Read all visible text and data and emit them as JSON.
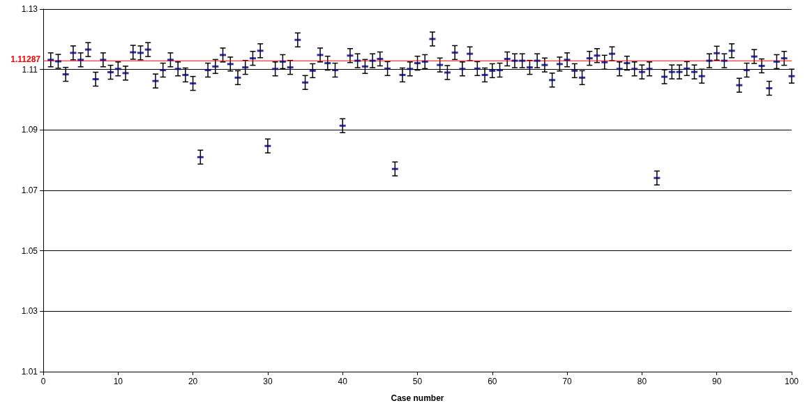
{
  "chart_data": {
    "type": "scatter",
    "xlabel": "Case number",
    "x": [
      1,
      2,
      3,
      4,
      5,
      6,
      7,
      8,
      9,
      10,
      11,
      12,
      13,
      14,
      15,
      16,
      17,
      18,
      19,
      20,
      21,
      22,
      23,
      24,
      25,
      26,
      27,
      28,
      29,
      30,
      31,
      32,
      33,
      34,
      35,
      36,
      37,
      38,
      39,
      40,
      41,
      42,
      43,
      44,
      45,
      46,
      47,
      48,
      49,
      50,
      51,
      52,
      53,
      54,
      55,
      56,
      57,
      58,
      59,
      60,
      61,
      62,
      63,
      64,
      65,
      66,
      67,
      68,
      69,
      70,
      71,
      72,
      73,
      74,
      75,
      76,
      77,
      78,
      79,
      80,
      81,
      82,
      83,
      84,
      85,
      86,
      87,
      88,
      89,
      90,
      91,
      92,
      93,
      94,
      95,
      96,
      97,
      98,
      99,
      100
    ],
    "series": [
      {
        "color": "#000080",
        "values": [
          1.1132,
          1.1127,
          1.1084,
          1.1155,
          1.1132,
          1.1166,
          1.1068,
          1.1132,
          1.1091,
          1.1102,
          1.1088,
          1.1157,
          1.1155,
          1.1166,
          1.1062,
          1.1098,
          1.1132,
          1.1102,
          1.1082,
          1.1054,
          1.081,
          1.1098,
          1.111,
          1.1148,
          1.1118,
          1.1073,
          1.1107,
          1.1137,
          1.1162,
          1.0847,
          1.1102,
          1.1126,
          1.1107,
          1.1198,
          1.1057,
          1.1096,
          1.1148,
          1.1121,
          1.1098,
          1.0914,
          1.1146,
          1.1129,
          1.111,
          1.1129,
          1.1135,
          1.1103,
          1.0771,
          1.1082,
          1.1102,
          1.1121,
          1.1126,
          1.1201,
          1.1115,
          1.109,
          1.1156,
          1.1102,
          1.1152,
          1.1103,
          1.1082,
          1.1096,
          1.1098,
          1.1135,
          1.1129,
          1.1129,
          1.1107,
          1.1129,
          1.1115,
          1.1065,
          1.1118,
          1.1132,
          1.1096,
          1.1073,
          1.1137,
          1.1146,
          1.1124,
          1.1152,
          1.1102,
          1.1121,
          1.1102,
          1.1092,
          1.1102,
          1.0741,
          1.1076,
          1.1092,
          1.1092,
          1.1103,
          1.1092,
          1.1078,
          1.1129,
          1.1154,
          1.1129,
          1.1162,
          1.1048,
          1.1098,
          1.1143,
          1.1112,
          1.1038,
          1.1126,
          1.1137,
          1.1078
        ],
        "errors": [
          0.0023,
          0.0023,
          0.0023,
          0.0023,
          0.0023,
          0.0023,
          0.0023,
          0.0023,
          0.0023,
          0.0023,
          0.0023,
          0.0023,
          0.0023,
          0.0023,
          0.0023,
          0.0023,
          0.0023,
          0.0023,
          0.0023,
          0.0023,
          0.0023,
          0.0023,
          0.0023,
          0.0023,
          0.0023,
          0.0023,
          0.0023,
          0.0023,
          0.0023,
          0.0023,
          0.0023,
          0.0023,
          0.0023,
          0.0023,
          0.0023,
          0.0023,
          0.0023,
          0.0023,
          0.0023,
          0.0023,
          0.0023,
          0.0023,
          0.0023,
          0.0023,
          0.0023,
          0.0023,
          0.0023,
          0.0023,
          0.0023,
          0.0023,
          0.0023,
          0.0023,
          0.0023,
          0.0023,
          0.0023,
          0.0023,
          0.0023,
          0.0023,
          0.0023,
          0.0023,
          0.0023,
          0.0023,
          0.0023,
          0.0023,
          0.0023,
          0.0023,
          0.0023,
          0.0023,
          0.0023,
          0.0023,
          0.0023,
          0.0023,
          0.0023,
          0.0023,
          0.0023,
          0.0023,
          0.0023,
          0.0023,
          0.0023,
          0.0023,
          0.0023,
          0.0023,
          0.0023,
          0.0023,
          0.0023,
          0.0023,
          0.0023,
          0.0023,
          0.0023,
          0.0023,
          0.0023,
          0.0023,
          0.0023,
          0.0023,
          0.0023,
          0.0023,
          0.0023,
          0.0023,
          0.0023,
          0.0023
        ]
      }
    ],
    "xlim": [
      0,
      100
    ],
    "xticks": [
      0,
      10,
      20,
      30,
      40,
      50,
      60,
      70,
      80,
      90,
      100
    ],
    "ylim": [
      1.01,
      1.13
    ],
    "yticks": [
      1.01,
      1.03,
      1.05,
      1.07,
      1.09,
      1.11,
      1.13
    ],
    "grid": "y",
    "ref_lines": [
      {
        "axis": "y",
        "value": 1.11287,
        "label": "1.11287",
        "color": "#ff0000"
      }
    ]
  }
}
